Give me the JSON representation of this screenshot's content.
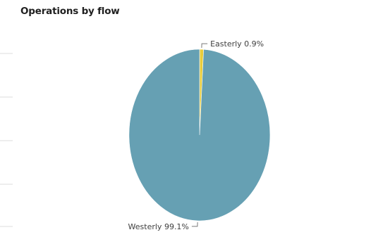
{
  "chart_data": {
    "type": "pie",
    "title": "Operations by flow",
    "slices": [
      {
        "label": "Easterly",
        "percent_label": "0.9%",
        "value": 0.9,
        "color": "#e8cd3c"
      },
      {
        "label": "Westerly",
        "percent_label": "99.1%",
        "value": 99.1,
        "color": "#66a0b3"
      }
    ],
    "start_angle_deg": 0,
    "direction": "clockwise"
  }
}
